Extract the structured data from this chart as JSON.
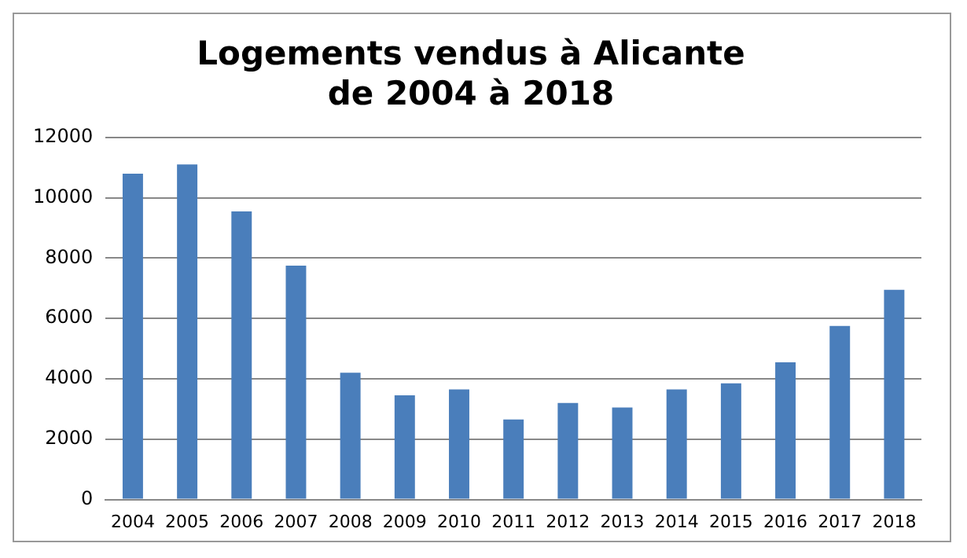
{
  "chart_data": {
    "type": "bar",
    "title": [
      "Logements vendus à Alicante",
      "de 2004 à 2018"
    ],
    "categories": [
      "2004",
      "2005",
      "2006",
      "2007",
      "2008",
      "2009",
      "2010",
      "2011",
      "2012",
      "2013",
      "2014",
      "2015",
      "2016",
      "2017",
      "2018"
    ],
    "values": [
      10800,
      11100,
      9550,
      7750,
      4200,
      3450,
      3650,
      2650,
      3200,
      3050,
      3650,
      3850,
      4550,
      5750,
      6950
    ],
    "color": "#4a7ebb",
    "ylim": [
      0,
      12000
    ],
    "yticks": [
      0,
      2000,
      4000,
      6000,
      8000,
      10000,
      12000
    ],
    "grid": "y"
  }
}
